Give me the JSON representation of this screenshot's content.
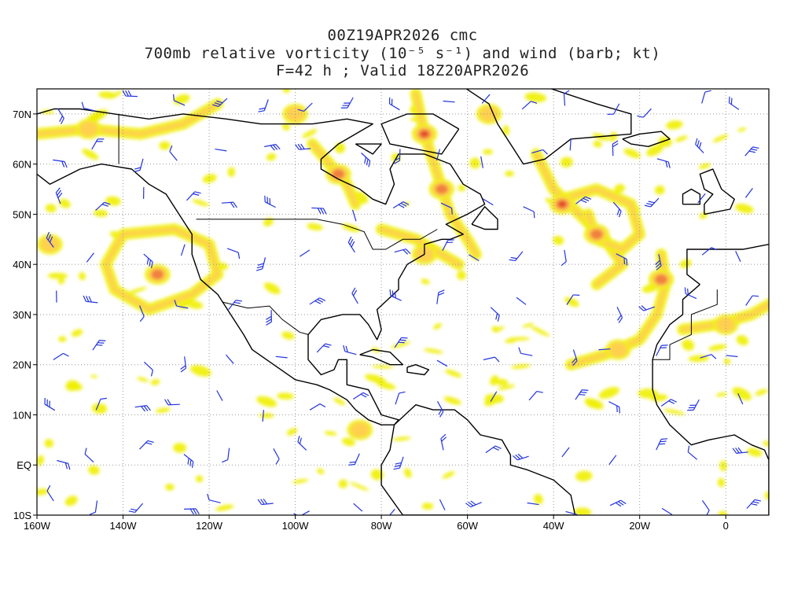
{
  "title": {
    "line1": "00Z19APR2026 cmc",
    "line2": "700mb relative vorticity (10⁻⁵ s⁻¹) and wind (barb; kt)",
    "line3": "F=42 h ; Valid 18Z20APR2026"
  },
  "axes": {
    "lon_min": -160,
    "lon_max": 10,
    "lat_min": -10,
    "lat_max": 75,
    "x_ticks": [
      {
        "lon": -160,
        "label": "160W"
      },
      {
        "lon": -140,
        "label": "140W"
      },
      {
        "lon": -120,
        "label": "120W"
      },
      {
        "lon": -100,
        "label": "100W"
      },
      {
        "lon": -80,
        "label": "80W"
      },
      {
        "lon": -60,
        "label": "60W"
      },
      {
        "lon": -40,
        "label": "40W"
      },
      {
        "lon": -20,
        "label": "20W"
      },
      {
        "lon": 0,
        "label": "0"
      }
    ],
    "y_ticks": [
      {
        "lat": 70,
        "label": "70N"
      },
      {
        "lat": 60,
        "label": "60N"
      },
      {
        "lat": 50,
        "label": "50N"
      },
      {
        "lat": 40,
        "label": "40N"
      },
      {
        "lat": 30,
        "label": "30N"
      },
      {
        "lat": 20,
        "label": "20N"
      },
      {
        "lat": 10,
        "label": "10N"
      },
      {
        "lat": 0,
        "label": "EQ"
      },
      {
        "lat": -10,
        "label": "10S"
      }
    ],
    "grid": "dotted"
  },
  "colors": {
    "shade_low": "#f0f000",
    "shade_mid": "#ffd050",
    "shade_high": "#f08040",
    "shade_max": "#e03020",
    "barb": "#2233dd",
    "coast": "#000000"
  },
  "vorticity_features": [
    {
      "lon": -70,
      "lat": 66,
      "intensity": 3
    },
    {
      "lon": -66,
      "lat": 55,
      "intensity": 2
    },
    {
      "lon": -38,
      "lat": 52,
      "intensity": 3
    },
    {
      "lon": -30,
      "lat": 46,
      "intensity": 2
    },
    {
      "lon": -15,
      "lat": 37,
      "intensity": 2
    },
    {
      "lon": -132,
      "lat": 38,
      "intensity": 2
    },
    {
      "lon": -90,
      "lat": 58,
      "intensity": 2
    },
    {
      "lon": -70,
      "lat": 42,
      "intensity": 1
    },
    {
      "lon": -157,
      "lat": 44,
      "intensity": 1
    },
    {
      "lon": -100,
      "lat": 70,
      "intensity": 1
    },
    {
      "lon": 0,
      "lat": 28,
      "intensity": 1
    },
    {
      "lon": -25,
      "lat": 23,
      "intensity": 1
    },
    {
      "lon": -85,
      "lat": 7,
      "intensity": 1
    },
    {
      "lon": -55,
      "lat": 70,
      "intensity": 1
    },
    {
      "lon": -148,
      "lat": 67,
      "intensity": 1
    }
  ]
}
